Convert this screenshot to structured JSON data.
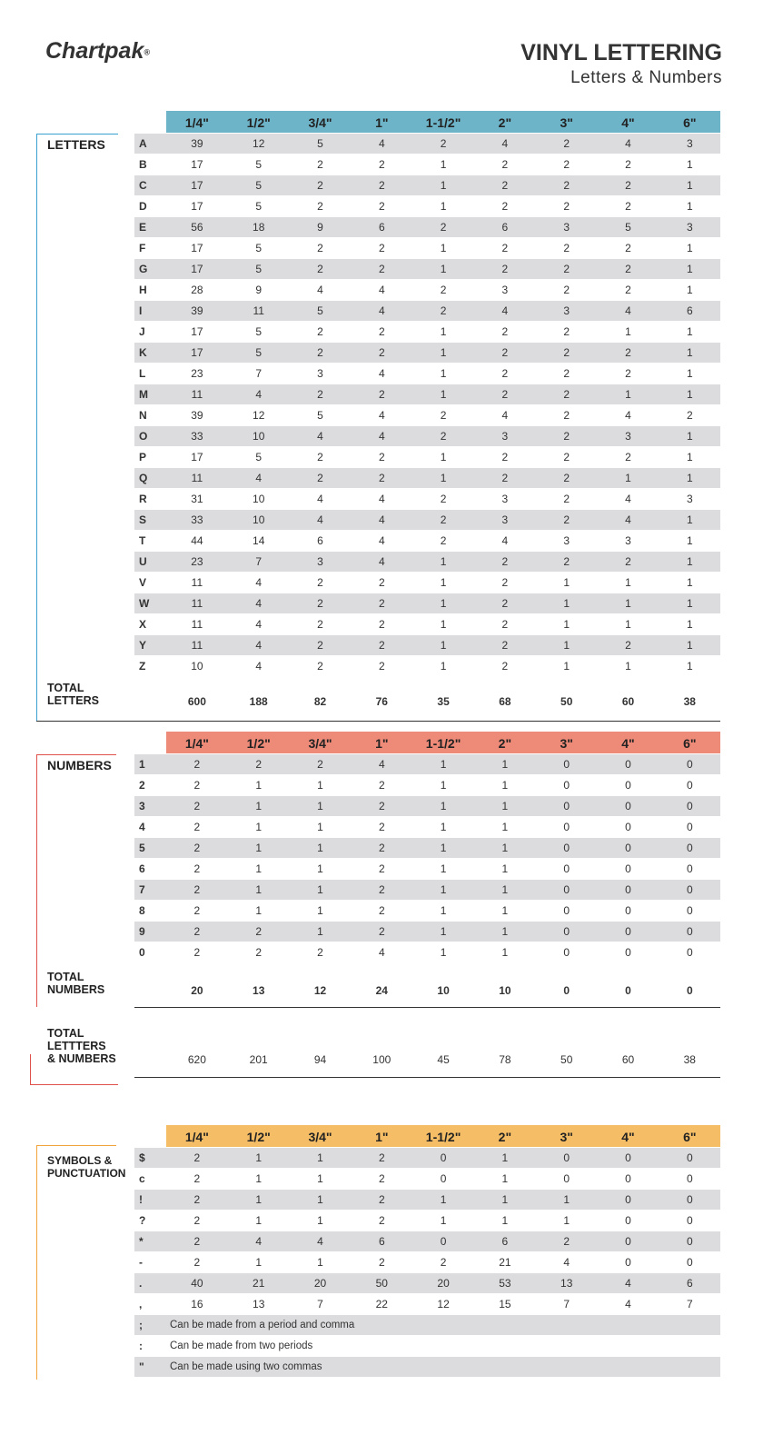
{
  "header": {
    "logo": "Chartpak",
    "logo_mark": "®",
    "title": "VINYL LETTERING",
    "subtitle": "Letters & Numbers"
  },
  "letters": {
    "label": "LETTERS",
    "columns": [
      "1/4\"",
      "1/2\"",
      "3/4\"",
      "1\"",
      "1-1/2\"",
      "2\"",
      "3\"",
      "4\"",
      "6\""
    ],
    "rows": [
      {
        "key": "A",
        "values": [
          39,
          12,
          5,
          4,
          2,
          4,
          2,
          4,
          3
        ]
      },
      {
        "key": "B",
        "values": [
          17,
          5,
          2,
          2,
          1,
          2,
          2,
          2,
          1
        ]
      },
      {
        "key": "C",
        "values": [
          17,
          5,
          2,
          2,
          1,
          2,
          2,
          2,
          1
        ]
      },
      {
        "key": "D",
        "values": [
          17,
          5,
          2,
          2,
          1,
          2,
          2,
          2,
          1
        ]
      },
      {
        "key": "E",
        "values": [
          56,
          18,
          9,
          6,
          2,
          6,
          3,
          5,
          3
        ]
      },
      {
        "key": "F",
        "values": [
          17,
          5,
          2,
          2,
          1,
          2,
          2,
          2,
          1
        ]
      },
      {
        "key": "G",
        "values": [
          17,
          5,
          2,
          2,
          1,
          2,
          2,
          2,
          1
        ]
      },
      {
        "key": "H",
        "values": [
          28,
          9,
          4,
          4,
          2,
          3,
          2,
          2,
          1
        ]
      },
      {
        "key": "I",
        "values": [
          39,
          11,
          5,
          4,
          2,
          4,
          3,
          4,
          6
        ]
      },
      {
        "key": "J",
        "values": [
          17,
          5,
          2,
          2,
          1,
          2,
          2,
          1,
          1
        ]
      },
      {
        "key": "K",
        "values": [
          17,
          5,
          2,
          2,
          1,
          2,
          2,
          2,
          1
        ]
      },
      {
        "key": "L",
        "values": [
          23,
          7,
          3,
          4,
          1,
          2,
          2,
          2,
          1
        ]
      },
      {
        "key": "M",
        "values": [
          11,
          4,
          2,
          2,
          1,
          2,
          2,
          1,
          1
        ]
      },
      {
        "key": "N",
        "values": [
          39,
          12,
          5,
          4,
          2,
          4,
          2,
          4,
          2
        ]
      },
      {
        "key": "O",
        "values": [
          33,
          10,
          4,
          4,
          2,
          3,
          2,
          3,
          1
        ]
      },
      {
        "key": "P",
        "values": [
          17,
          5,
          2,
          2,
          1,
          2,
          2,
          2,
          1
        ]
      },
      {
        "key": "Q",
        "values": [
          11,
          4,
          2,
          2,
          1,
          2,
          2,
          1,
          1
        ]
      },
      {
        "key": "R",
        "values": [
          31,
          10,
          4,
          4,
          2,
          3,
          2,
          4,
          3
        ]
      },
      {
        "key": "S",
        "values": [
          33,
          10,
          4,
          4,
          2,
          3,
          2,
          4,
          1
        ]
      },
      {
        "key": "T",
        "values": [
          44,
          14,
          6,
          4,
          2,
          4,
          3,
          3,
          1
        ]
      },
      {
        "key": "U",
        "values": [
          23,
          7,
          3,
          4,
          1,
          2,
          2,
          2,
          1
        ]
      },
      {
        "key": "V",
        "values": [
          11,
          4,
          2,
          2,
          1,
          2,
          1,
          1,
          1
        ]
      },
      {
        "key": "W",
        "values": [
          11,
          4,
          2,
          2,
          1,
          2,
          1,
          1,
          1
        ]
      },
      {
        "key": "X",
        "values": [
          11,
          4,
          2,
          2,
          1,
          2,
          1,
          1,
          1
        ]
      },
      {
        "key": "Y",
        "values": [
          11,
          4,
          2,
          2,
          1,
          2,
          1,
          2,
          1
        ]
      },
      {
        "key": "Z",
        "values": [
          10,
          4,
          2,
          2,
          1,
          2,
          1,
          1,
          1
        ]
      }
    ],
    "total": {
      "label": "TOTAL\nLETTERS",
      "values": [
        600,
        188,
        82,
        76,
        35,
        68,
        50,
        60,
        38
      ]
    }
  },
  "numbers": {
    "label": "NUMBERS",
    "columns": [
      "1/4\"",
      "1/2\"",
      "3/4\"",
      "1\"",
      "1-1/2\"",
      "2\"",
      "3\"",
      "4\"",
      "6\""
    ],
    "rows": [
      {
        "key": "1",
        "values": [
          2,
          2,
          2,
          4,
          1,
          1,
          0,
          0,
          0
        ]
      },
      {
        "key": "2",
        "values": [
          2,
          1,
          1,
          2,
          1,
          1,
          0,
          0,
          0
        ]
      },
      {
        "key": "3",
        "values": [
          2,
          1,
          1,
          2,
          1,
          1,
          0,
          0,
          0
        ]
      },
      {
        "key": "4",
        "values": [
          2,
          1,
          1,
          2,
          1,
          1,
          0,
          0,
          0
        ]
      },
      {
        "key": "5",
        "values": [
          2,
          1,
          1,
          2,
          1,
          1,
          0,
          0,
          0
        ]
      },
      {
        "key": "6",
        "values": [
          2,
          1,
          1,
          2,
          1,
          1,
          0,
          0,
          0
        ]
      },
      {
        "key": "7",
        "values": [
          2,
          1,
          1,
          2,
          1,
          1,
          0,
          0,
          0
        ]
      },
      {
        "key": "8",
        "values": [
          2,
          1,
          1,
          2,
          1,
          1,
          0,
          0,
          0
        ]
      },
      {
        "key": "9",
        "values": [
          2,
          2,
          1,
          2,
          1,
          1,
          0,
          0,
          0
        ]
      },
      {
        "key": "0",
        "values": [
          2,
          2,
          2,
          4,
          1,
          1,
          0,
          0,
          0
        ]
      }
    ],
    "total": {
      "label": "TOTAL\nNUMBERS",
      "values": [
        20,
        13,
        12,
        24,
        10,
        10,
        0,
        0,
        0
      ]
    }
  },
  "grand_total": {
    "label": "TOTAL\nLETTTERS\n& NUMBERS",
    "values": [
      620,
      201,
      94,
      100,
      45,
      78,
      50,
      60,
      38
    ]
  },
  "symbols": {
    "label": "SYMBOLS &\nPUNCTUATION",
    "columns": [
      "1/4\"",
      "1/2\"",
      "3/4\"",
      "1\"",
      "1-1/2\"",
      "2\"",
      "3\"",
      "4\"",
      "6\""
    ],
    "rows": [
      {
        "key": "$",
        "values": [
          2,
          1,
          1,
          2,
          0,
          1,
          0,
          0,
          0
        ]
      },
      {
        "key": "c",
        "values": [
          2,
          1,
          1,
          2,
          0,
          1,
          0,
          0,
          0
        ]
      },
      {
        "key": "!",
        "values": [
          2,
          1,
          1,
          2,
          1,
          1,
          1,
          0,
          0
        ]
      },
      {
        "key": "?",
        "values": [
          2,
          1,
          1,
          2,
          1,
          1,
          1,
          0,
          0
        ]
      },
      {
        "key": "*",
        "values": [
          2,
          4,
          4,
          6,
          0,
          6,
          2,
          0,
          0
        ]
      },
      {
        "key": "-",
        "values": [
          2,
          1,
          1,
          2,
          2,
          21,
          4,
          0,
          0
        ]
      },
      {
        "key": ".",
        "values": [
          40,
          21,
          20,
          50,
          20,
          53,
          13,
          4,
          6
        ]
      },
      {
        "key": ",",
        "values": [
          16,
          13,
          7,
          22,
          12,
          15,
          7,
          4,
          7
        ]
      }
    ],
    "notes": [
      {
        "key": ";",
        "text": "Can be made from a period and comma"
      },
      {
        "key": ":",
        "text": "Can be made from two periods"
      },
      {
        "key": "\"",
        "text": "Can be made using two commas"
      }
    ]
  }
}
